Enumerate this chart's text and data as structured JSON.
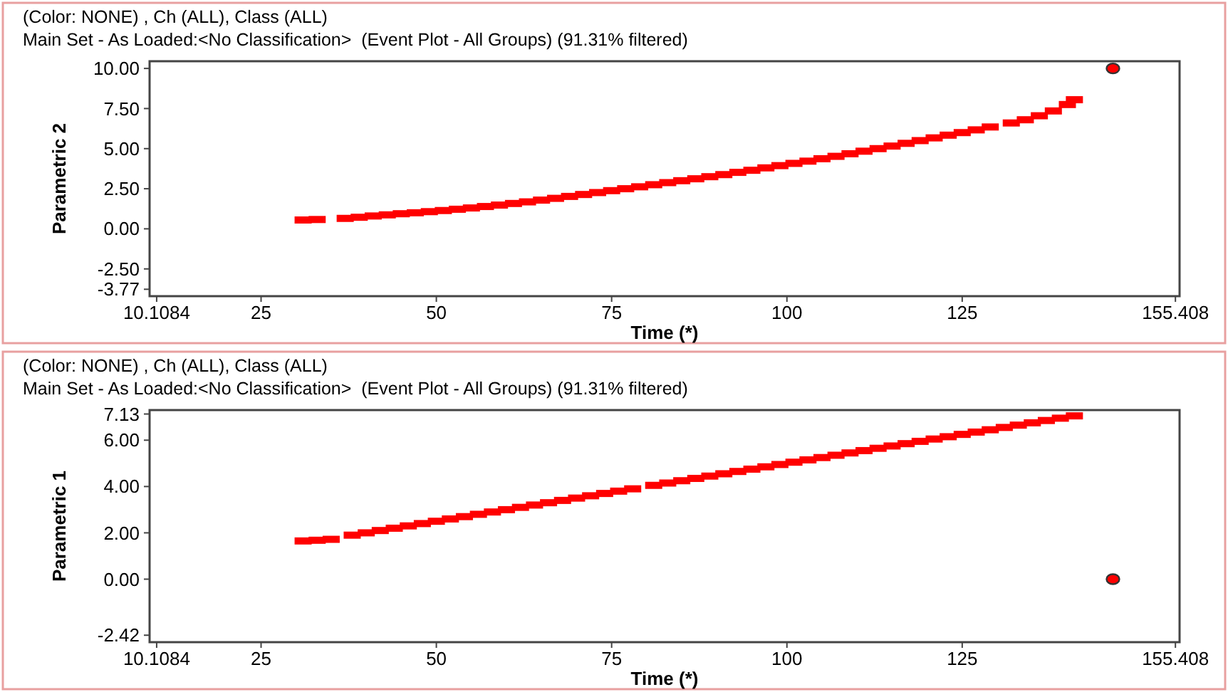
{
  "chart_data": [
    {
      "type": "scatter",
      "title": "(Color: NONE) , Ch (ALL), Class (ALL)",
      "subtitle": "Main Set - As Loaded:<No Classification>  (Event Plot - All Groups) (91.31% filtered)",
      "xlabel": "Time (*)",
      "ylabel": "Parametric 2",
      "xlim": [
        9.1,
        156
      ],
      "ylim": [
        -4.2,
        10.45
      ],
      "xticks": [
        10.1084,
        25,
        50,
        75,
        100,
        125,
        155.408
      ],
      "yticks": [
        {
          "value": -3.77,
          "label": "-3.77"
        },
        {
          "value": -2.5,
          "label": "-2.50"
        },
        {
          "value": 0,
          "label": "0.00"
        },
        {
          "value": 2.5,
          "label": "2.50"
        },
        {
          "value": 5,
          "label": "5.00"
        },
        {
          "value": 7.5,
          "label": "7.50"
        },
        {
          "value": 10,
          "label": "10.00"
        }
      ],
      "grid": false,
      "series": [
        {
          "color": "#ff0000",
          "marker": "square",
          "x": [
            31,
            33,
            37,
            39,
            41,
            43,
            45,
            47,
            49,
            51,
            53,
            55,
            57,
            59,
            61,
            63,
            65,
            67,
            69,
            71,
            73,
            75,
            77,
            79,
            81,
            83,
            85,
            87,
            89,
            91,
            93,
            95,
            97,
            99,
            101,
            103,
            105,
            107,
            109,
            111,
            113,
            115,
            117,
            119,
            121,
            123,
            125,
            127,
            129,
            132,
            134,
            136,
            138,
            140,
            141
          ],
          "values": [
            0.55,
            0.58,
            0.65,
            0.72,
            0.8,
            0.87,
            0.94,
            1.0,
            1.07,
            1.14,
            1.22,
            1.3,
            1.39,
            1.48,
            1.58,
            1.68,
            1.79,
            1.9,
            2.02,
            2.14,
            2.26,
            2.38,
            2.5,
            2.62,
            2.75,
            2.88,
            3.0,
            3.12,
            3.25,
            3.38,
            3.52,
            3.65,
            3.8,
            3.94,
            4.08,
            4.22,
            4.37,
            4.52,
            4.68,
            4.84,
            5.0,
            5.16,
            5.33,
            5.5,
            5.67,
            5.84,
            6.0,
            6.17,
            6.35,
            6.6,
            6.8,
            7.05,
            7.35,
            7.75,
            8.05
          ]
        },
        {
          "color": "#ff0000",
          "marker": "circle",
          "x": [
            146.5
          ],
          "values": [
            10
          ]
        }
      ]
    },
    {
      "type": "scatter",
      "title": "(Color: NONE) , Ch (ALL), Class (ALL)",
      "subtitle": "Main Set - As Loaded:<No Classification>  (Event Plot - All Groups) (91.31% filtered)",
      "xlabel": "Time (*)",
      "ylabel": "Parametric 1",
      "xlim": [
        9.1,
        156
      ],
      "ylim": [
        -2.72,
        7.3
      ],
      "xticks": [
        10.1084,
        25,
        50,
        75,
        100,
        125,
        155.408
      ],
      "yticks": [
        {
          "value": -2.42,
          "label": "-2.42"
        },
        {
          "value": 0,
          "label": "0.00"
        },
        {
          "value": 2,
          "label": "2.00"
        },
        {
          "value": 4,
          "label": "4.00"
        },
        {
          "value": 6,
          "label": "6.00"
        },
        {
          "value": 7.13,
          "label": "7.13"
        }
      ],
      "grid": false,
      "series": [
        {
          "color": "#ff0000",
          "marker": "square",
          "x": [
            31,
            33,
            35,
            38,
            40,
            42,
            44,
            46,
            48,
            50,
            52,
            54,
            56,
            58,
            60,
            62,
            64,
            66,
            68,
            70,
            72,
            74,
            76,
            78,
            81,
            83,
            85,
            87,
            89,
            91,
            93,
            95,
            97,
            99,
            101,
            103,
            105,
            107,
            109,
            111,
            113,
            115,
            117,
            119,
            121,
            123,
            125,
            127,
            129,
            131,
            133,
            135,
            137,
            139,
            141
          ],
          "values": [
            1.65,
            1.68,
            1.72,
            1.9,
            2.0,
            2.1,
            2.2,
            2.3,
            2.4,
            2.5,
            2.6,
            2.7,
            2.8,
            2.9,
            3.0,
            3.1,
            3.2,
            3.3,
            3.4,
            3.5,
            3.6,
            3.7,
            3.8,
            3.9,
            4.05,
            4.15,
            4.25,
            4.35,
            4.45,
            4.55,
            4.65,
            4.75,
            4.85,
            4.95,
            5.05,
            5.15,
            5.25,
            5.35,
            5.45,
            5.55,
            5.65,
            5.75,
            5.85,
            5.95,
            6.05,
            6.15,
            6.25,
            6.35,
            6.45,
            6.55,
            6.65,
            6.75,
            6.85,
            6.95,
            7.05
          ]
        },
        {
          "color": "#ff0000",
          "marker": "circle",
          "x": [
            146.5
          ],
          "values": [
            0
          ]
        }
      ]
    }
  ]
}
